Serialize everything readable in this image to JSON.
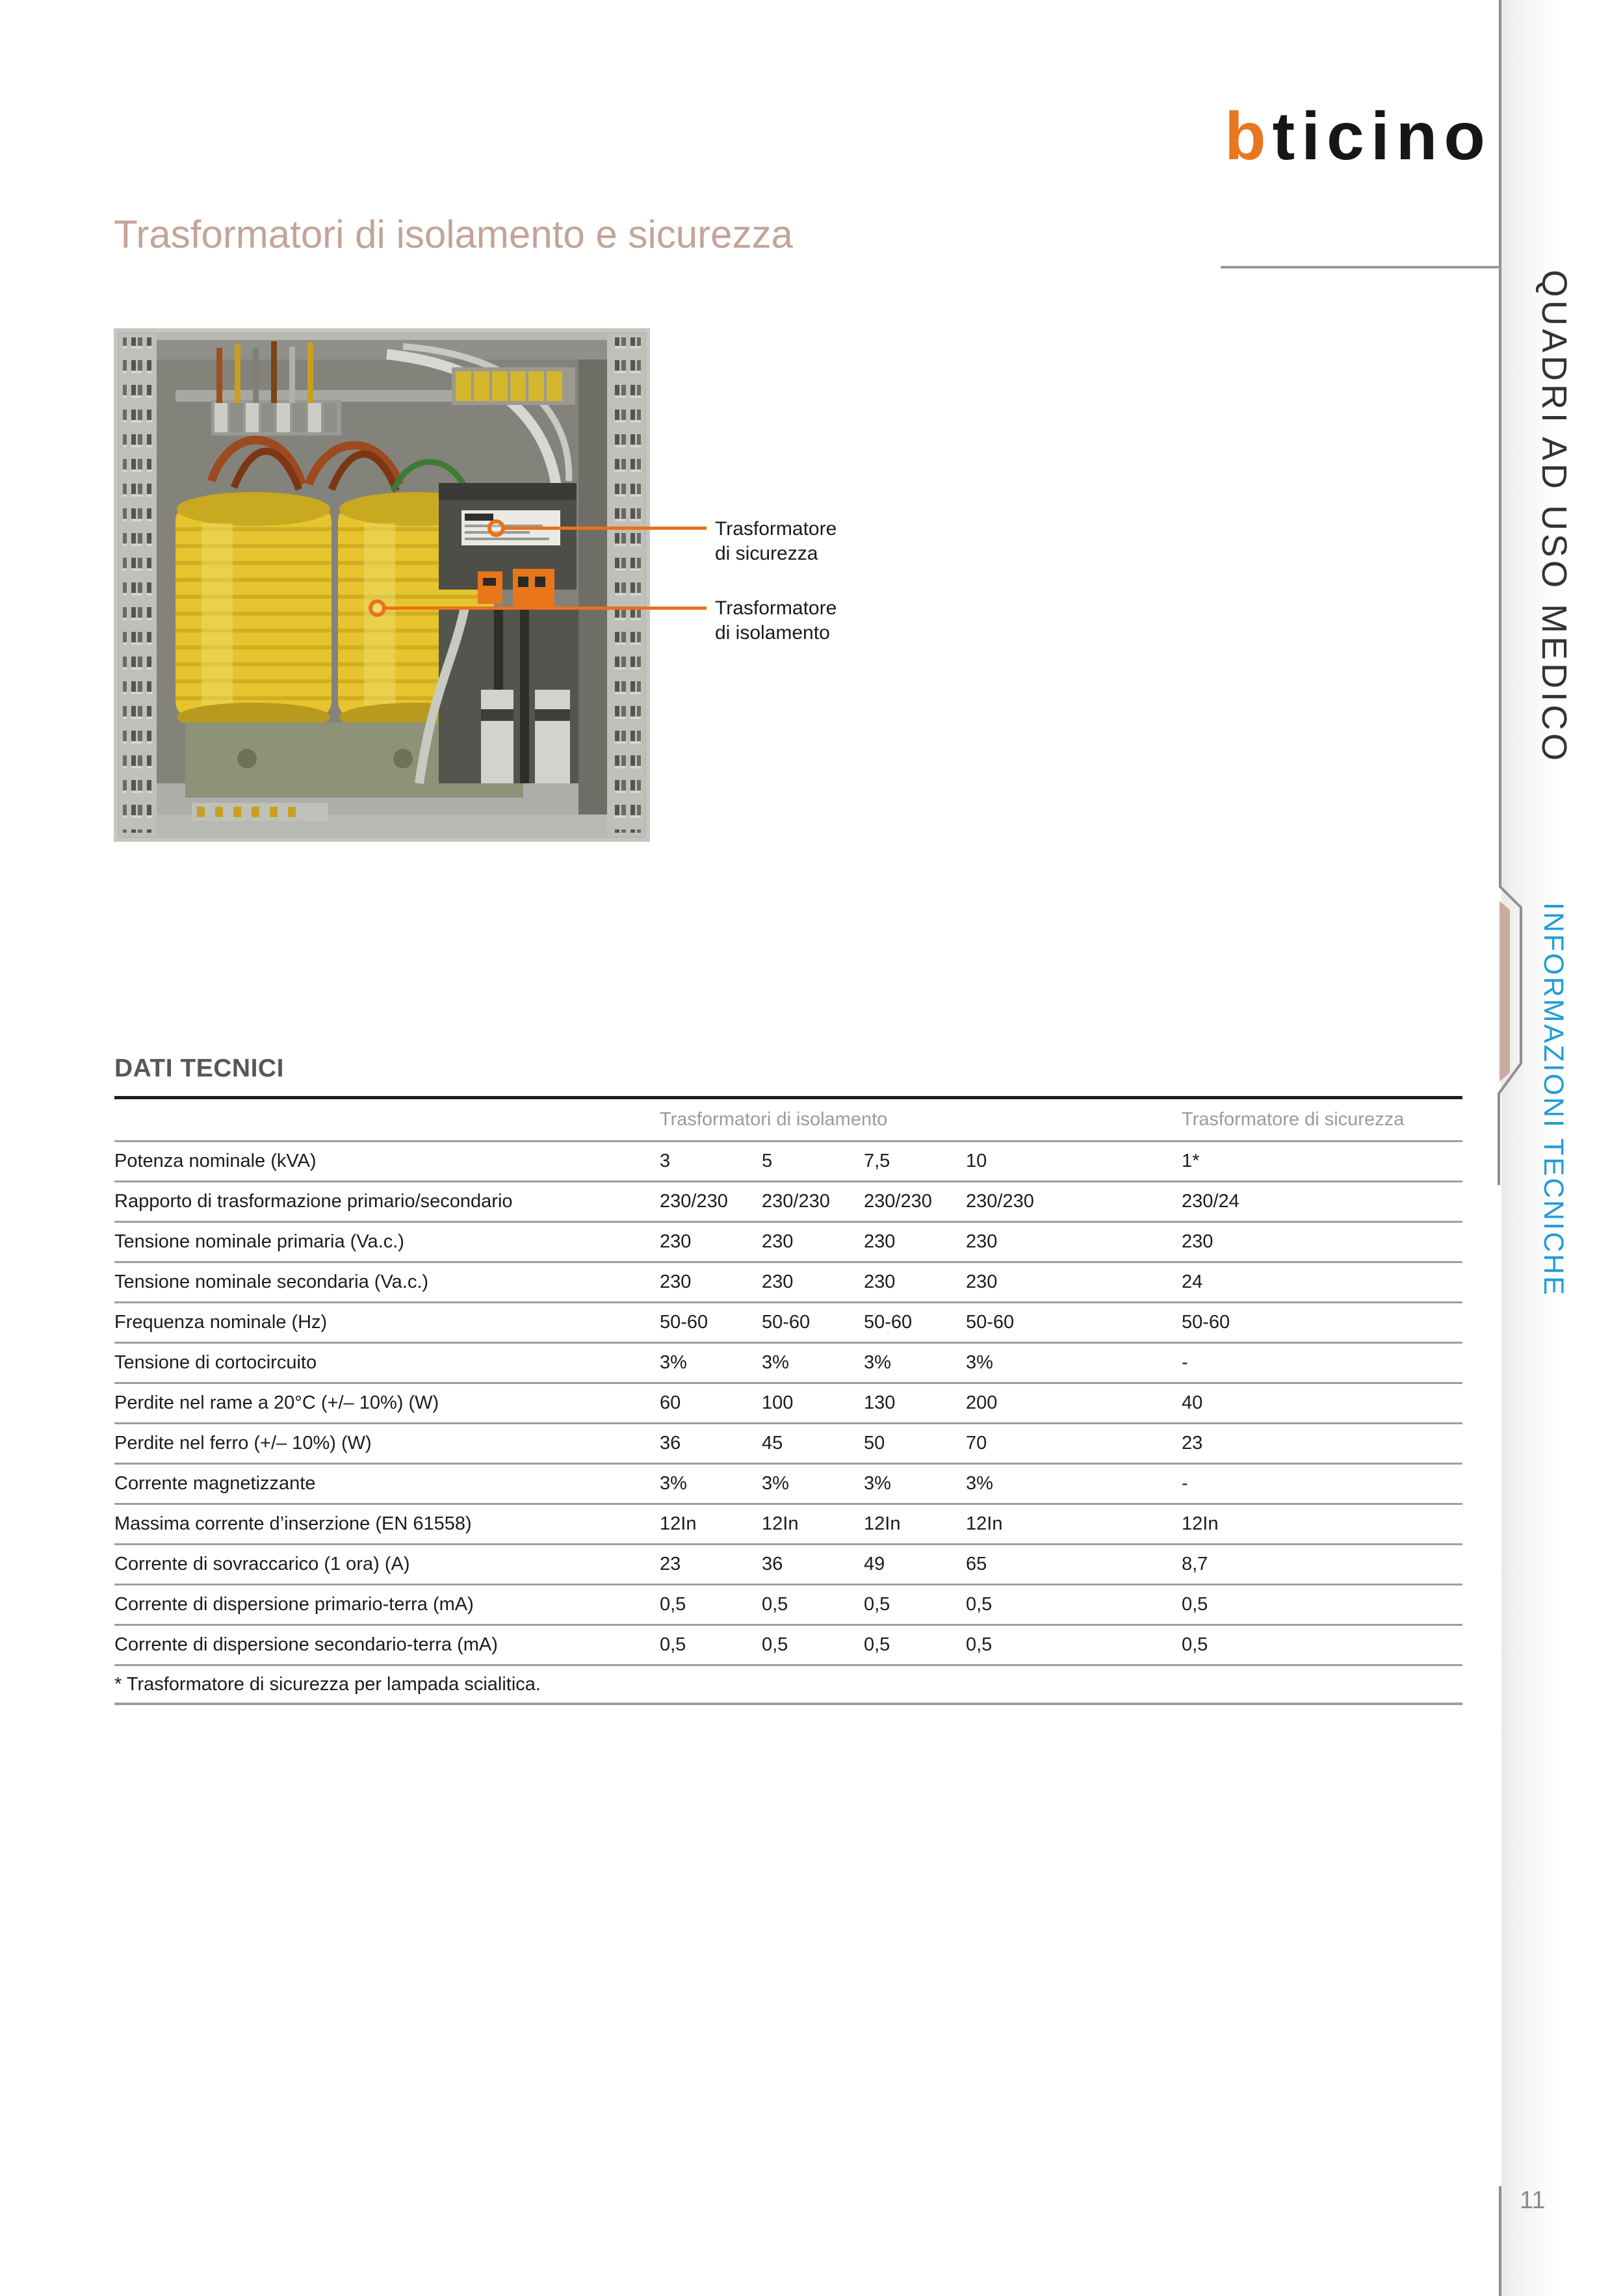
{
  "brand": {
    "logo_prefix": "b",
    "logo_suffix": "ticino"
  },
  "page_title": "Trasformatori di isolamento e sicurezza",
  "sidebar": {
    "section_label": "QUADRI AD USO MEDICO",
    "subsection_label": "INFORMAZIONI TECNICHE",
    "page_number": "11"
  },
  "figure": {
    "callouts": [
      {
        "line1": "Trasformatore",
        "line2": "di sicurezza"
      },
      {
        "line1": "Trasformatore",
        "line2": "di isolamento"
      }
    ]
  },
  "table": {
    "heading": "DATI TECNICI",
    "group_headers": [
      "Trasformatori di isolamento",
      "Trasformatore di sicurezza"
    ],
    "rows": [
      {
        "label": "Potenza nominale (kVA)",
        "values": [
          "3",
          "5",
          "7,5",
          "10",
          "1*"
        ]
      },
      {
        "label": "Rapporto di trasformazione primario/secondario",
        "values": [
          "230/230",
          "230/230",
          "230/230",
          "230/230",
          "230/24"
        ]
      },
      {
        "label": "Tensione nominale primaria (Va.c.)",
        "values": [
          "230",
          "230",
          "230",
          "230",
          "230"
        ]
      },
      {
        "label": "Tensione nominale secondaria (Va.c.)",
        "values": [
          "230",
          "230",
          "230",
          "230",
          "24"
        ]
      },
      {
        "label": "Frequenza nominale (Hz)",
        "values": [
          "50-60",
          "50-60",
          "50-60",
          "50-60",
          "50-60"
        ]
      },
      {
        "label": "Tensione di cortocircuito",
        "values": [
          "3%",
          "3%",
          "3%",
          "3%",
          "-"
        ]
      },
      {
        "label": "Perdite nel rame a 20°C  (+/– 10%) (W)",
        "values": [
          "60",
          "100",
          "130",
          "200",
          "40"
        ]
      },
      {
        "label": "Perdite nel ferro (+/– 10%) (W)",
        "values": [
          "36",
          "45",
          "50",
          "70",
          "23"
        ]
      },
      {
        "label": "Corrente magnetizzante",
        "values": [
          "3%",
          "3%",
          "3%",
          "3%",
          "-"
        ]
      },
      {
        "label": "Massima corrente d’inserzione (EN 61558)",
        "values": [
          "12In",
          "12In",
          "12In",
          "12In",
          "12In"
        ]
      },
      {
        "label": "Corrente di sovraccarico (1 ora) (A)",
        "values": [
          "23",
          "36",
          "49",
          "65",
          "8,7"
        ]
      },
      {
        "label": "Corrente di dispersione primario-terra (mA)",
        "values": [
          "0,5",
          "0,5",
          "0,5",
          "0,5",
          "0,5"
        ]
      },
      {
        "label": "Corrente di dispersione secondario-terra (mA)",
        "values": [
          "0,5",
          "0,5",
          "0,5",
          "0,5",
          "0,5"
        ]
      }
    ],
    "footnote": "* Trasformatore di sicurezza per lampada scialitica."
  },
  "colors": {
    "accent_orange": "#e8731a",
    "accent_blue": "#1f9cd9",
    "title_tan": "#c3a497",
    "tab_bar_tan": "#c9aca0",
    "rule_dark": "#1d1d1d",
    "rule_gray": "#9e9e9e",
    "edge_line_gray": "#8f8f8f"
  }
}
